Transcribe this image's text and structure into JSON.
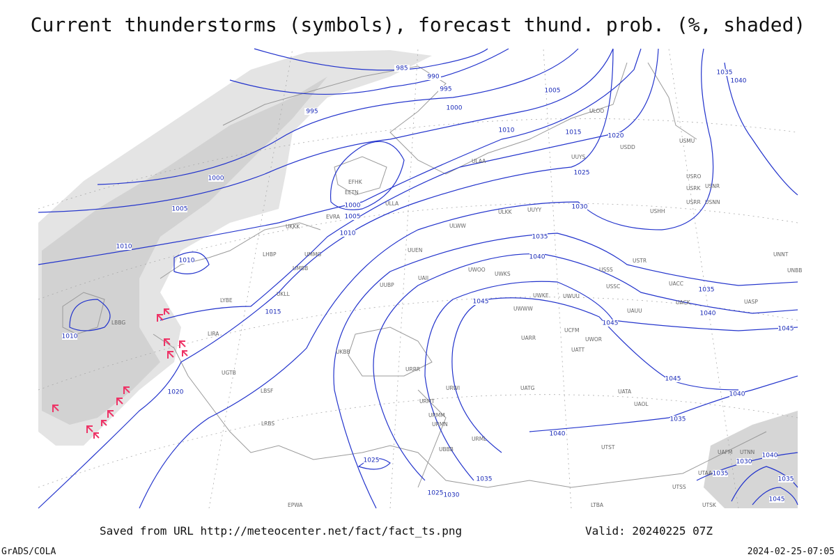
{
  "title": "Current thunderstorms (symbols), forecast thund. prob. (%, shaded)",
  "isobar_labels": [
    985,
    990,
    995,
    995,
    1000,
    1005,
    1010,
    1015,
    1020,
    1025,
    1030,
    1035,
    1040,
    1045,
    1045,
    1000,
    1005,
    1000,
    1005,
    1010,
    1010,
    1010,
    1015,
    1010,
    1020,
    1025,
    1025,
    1030,
    1035,
    1040,
    1045,
    1040,
    1035,
    1035,
    1040,
    1045,
    1035,
    1040,
    1030,
    1035,
    1040,
    1035,
    1045
  ],
  "stations": [
    "ULOO",
    "USDD",
    "UUYS",
    "USMU",
    "USRO",
    "USRK",
    "USNR",
    "USRR",
    "USNN",
    "USHH",
    "ULLA",
    "ULAA",
    "ULKK",
    "UUYY",
    "ULWW",
    "UUEN",
    "USTR",
    "UNNT",
    "UNBB",
    "USSS",
    "USSC",
    "UACC",
    "UACK",
    "UASP",
    "UWOO",
    "UWKS",
    "UWKE",
    "UWUU",
    "UWWW",
    "UARR",
    "UATT",
    "UWOR",
    "UATG",
    "UATA",
    "UAOL",
    "UAUU",
    "EFHK",
    "EETN",
    "EVRA",
    "UMMG",
    "UMBB",
    "UKKK",
    "UKLL",
    "UKBB",
    "UUBP",
    "URRR",
    "URWI",
    "URMT",
    "URMM",
    "URMN",
    "URML",
    "UBBB",
    "UGTB",
    "LBSF",
    "LRBS",
    "LBBG",
    "LIRA",
    "LYBE",
    "LHBP",
    "EPWA",
    "LTBA",
    "UTAA",
    "UTSS",
    "UTSK",
    "UTST",
    "UTNN",
    "UAFM",
    "UCFM",
    "UAII"
  ],
  "footer": {
    "saved_from": "Saved from URL http://meteocenter.net/fact/fact_ts.png",
    "valid": "Valid: 20240225 07Z",
    "software": "GrADS/COLA",
    "timestamp": "2024-02-25-07:05"
  }
}
